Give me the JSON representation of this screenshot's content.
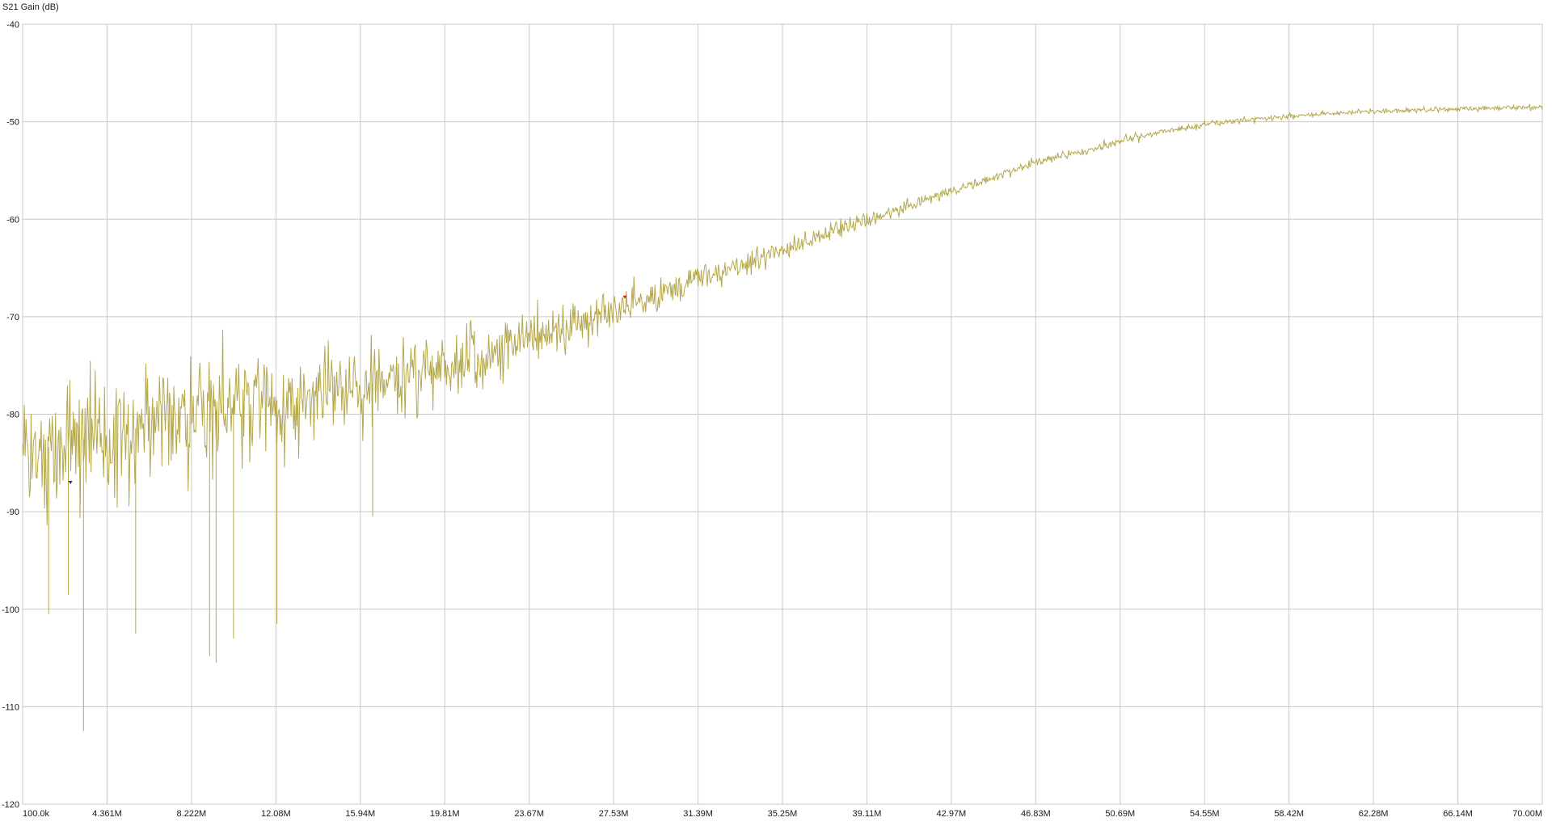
{
  "colors": {
    "background": "#ffffff",
    "grid": "#c8c8c8",
    "trace": "#b5a84a",
    "marker_1": "#2a2a8c",
    "marker_2": "#cc2222"
  },
  "chart_data": {
    "type": "line",
    "title": "",
    "ylabel": "S21 Gain (dB)",
    "xlabel": "",
    "xlim": [
      100000,
      70000000
    ],
    "ylim": [
      -120,
      -40
    ],
    "grid": true,
    "x_tick_labels": [
      "100.0k",
      "4.361M",
      "8.222M",
      "12.08M",
      "15.94M",
      "19.81M",
      "23.67M",
      "27.53M",
      "31.39M",
      "35.25M",
      "39.11M",
      "42.97M",
      "46.83M",
      "50.69M",
      "54.55M",
      "58.42M",
      "62.28M",
      "66.14M",
      "70.00M"
    ],
    "y_ticks": [
      -40,
      -50,
      -60,
      -70,
      -80,
      -90,
      -100,
      -110,
      -120
    ],
    "series": [
      {
        "name": "",
        "color": "#b5a84a",
        "x": [
          100000,
          1000000,
          2000000,
          3000000,
          4361000,
          6000000,
          8222000,
          10000000,
          12080000,
          14000000,
          15940000,
          18000000,
          19810000,
          22000000,
          23670000,
          26000000,
          27530000,
          29500000,
          31390000,
          33500000,
          35250000,
          37000000,
          39110000,
          41000000,
          42970000,
          45000000,
          46830000,
          49000000,
          50690000,
          52500000,
          54550000,
          56500000,
          58420000,
          60500000,
          62280000,
          64000000,
          66140000,
          68000000,
          70000000
        ],
        "y": [
          -84,
          -83.5,
          -83,
          -82.5,
          -82,
          -81,
          -80,
          -79,
          -78.5,
          -77.5,
          -77,
          -76,
          -75,
          -73.5,
          -72,
          -70.5,
          -69,
          -67.5,
          -66,
          -64.5,
          -63,
          -61.5,
          -60,
          -58.5,
          -57,
          -55.5,
          -54,
          -53,
          -52,
          -51,
          -50.3,
          -49.8,
          -49.4,
          -49.1,
          -48.9,
          -48.8,
          -48.7,
          -48.6,
          -48.5
        ],
        "noise_spread_db": [
          11,
          10.5,
          10,
          9.5,
          9,
          8.5,
          8,
          7.5,
          7,
          6.5,
          6,
          5.5,
          5,
          4.5,
          4,
          3.5,
          3,
          2.5,
          2,
          1.8,
          1.5,
          1.3,
          1.1,
          1.0,
          0.9,
          0.8,
          0.7,
          0.6,
          0.6,
          0.5,
          0.5,
          0.4,
          0.4,
          0.4,
          0.4,
          0.4,
          0.4,
          0.4,
          0.4
        ]
      }
    ],
    "spikes": [
      {
        "x": 2900000,
        "y": -112.5
      },
      {
        "x": 2200000,
        "y": -98.5
      },
      {
        "x": 1300000,
        "y": -100.5
      },
      {
        "x": 5300000,
        "y": -102.5
      },
      {
        "x": 9000000,
        "y": -105.5
      },
      {
        "x": 9800000,
        "y": -103
      },
      {
        "x": 11800000,
        "y": -101.5
      },
      {
        "x": 8700000,
        "y": -104.8
      },
      {
        "x": 16200000,
        "y": -90.5
      }
    ],
    "markers": [
      {
        "x": 2300000,
        "y": -87,
        "color": "#2a2a8c"
      },
      {
        "x": 27800000,
        "y": -68,
        "color": "#cc2222"
      }
    ]
  }
}
